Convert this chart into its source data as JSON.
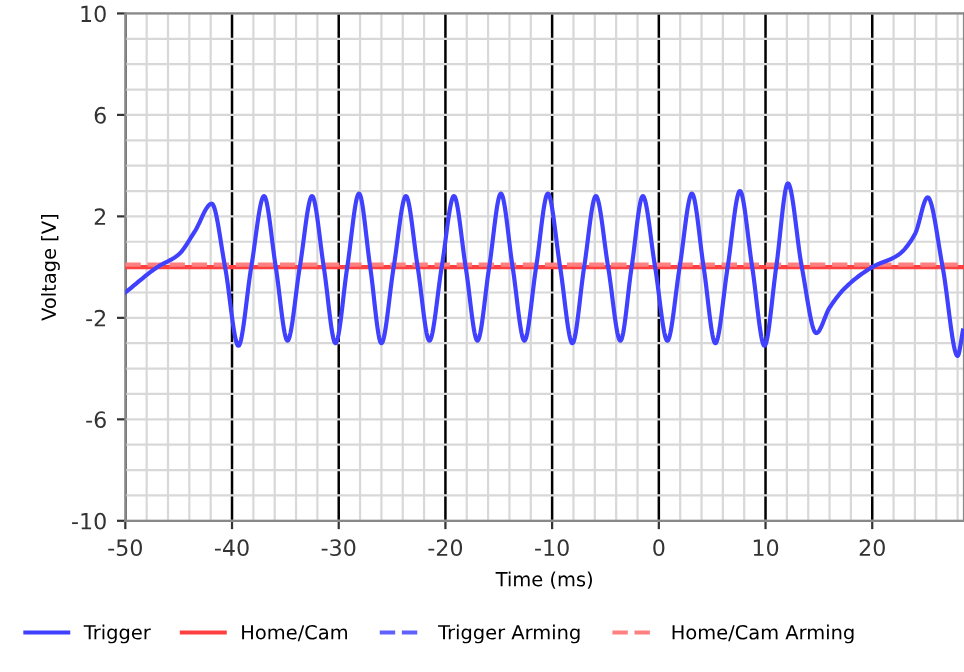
{
  "chart_data": {
    "type": "line",
    "xlabel": "Time (ms)",
    "ylabel": "Voltage [V]",
    "xlim": [
      -50,
      28.6
    ],
    "xticks": [
      -50,
      -40,
      -30,
      -20,
      -10,
      0,
      10,
      20
    ],
    "ylim": [
      -10,
      10
    ],
    "yticks": [
      -10,
      -6,
      -2,
      2,
      6,
      10
    ],
    "grid": true,
    "legend": "bottom",
    "marker": "none",
    "series": [
      {
        "name": "Trigger",
        "color": "#4040ff",
        "line_style": "solid",
        "x": [
          -50,
          -47,
          -45,
          -43.5,
          -41.9,
          -40.65,
          -39.4,
          -38.2,
          -37.0,
          -35.9,
          -34.8,
          -33.65,
          -32.5,
          -31.4,
          -30.3,
          -29.2,
          -28.1,
          -27.05,
          -26.0,
          -24.85,
          -23.7,
          -22.6,
          -21.5,
          -20.35,
          -19.2,
          -18.1,
          -17.0,
          -15.9,
          -14.8,
          -13.7,
          -12.6,
          -11.5,
          -10.4,
          -9.25,
          -8.1,
          -7.0,
          -5.9,
          -4.75,
          -3.6,
          -2.55,
          -1.5,
          -0.35,
          0.8,
          1.95,
          3.1,
          4.2,
          5.3,
          6.45,
          7.6,
          8.75,
          9.9,
          11.0,
          12.1,
          13.4,
          14.75,
          16.0,
          17.5,
          20.0,
          22.5,
          24.0,
          25.2,
          26.6,
          28.0,
          28.5
        ],
        "values": [
          -1.0,
          0.0,
          0.5,
          1.4,
          2.5,
          0,
          -3.1,
          0,
          2.8,
          0,
          -2.9,
          0,
          2.8,
          0,
          -3.0,
          0,
          2.9,
          0,
          -3.0,
          0,
          2.8,
          0,
          -2.9,
          0,
          2.8,
          0,
          -2.9,
          0,
          2.9,
          0,
          -2.9,
          0,
          2.9,
          0,
          -3.0,
          0,
          2.8,
          0,
          -2.9,
          0,
          2.8,
          0,
          -2.9,
          0,
          2.9,
          0,
          -3.0,
          0,
          3.0,
          0,
          -3.1,
          0,
          3.3,
          0,
          -2.6,
          -1.6,
          -0.8,
          0,
          0.5,
          1.3,
          2.75,
          0,
          -3.5,
          -2.5
        ]
      },
      {
        "name": "Home/Cam",
        "color": "#ff4040",
        "line_style": "solid",
        "x": [
          -50,
          28.6
        ],
        "values": [
          0,
          0
        ]
      },
      {
        "name": "Trigger Arming",
        "color": "#6060ff",
        "line_style": "dashed"
      },
      {
        "name": "Home/Cam Arming",
        "color": "#ff8080",
        "line_style": "dashed",
        "x": [
          -50,
          28.6
        ],
        "values": [
          0.1,
          0.1
        ]
      }
    ]
  }
}
